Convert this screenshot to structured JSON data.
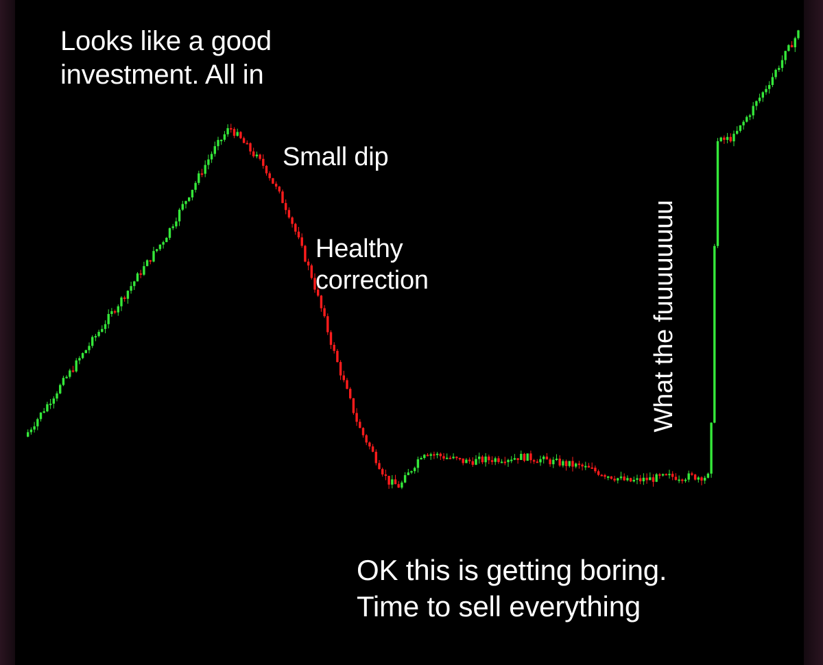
{
  "colors": {
    "background": "#000000",
    "up_candle": "#35e83a",
    "down_candle": "#ff1c1c",
    "text": "#ffffff"
  },
  "chart_data": {
    "type": "candlestick",
    "title": "",
    "xlabel": "",
    "ylabel": "",
    "axes_visible": false,
    "grid": false,
    "legend": "none",
    "ylim": [
      0,
      100
    ],
    "price_path": [
      {
        "t": 0,
        "price": 18
      },
      {
        "t": 12,
        "price": 38
      },
      {
        "t": 24,
        "price": 58
      },
      {
        "t": 32,
        "price": 75
      },
      {
        "t": 35,
        "price": 80
      },
      {
        "t": 41,
        "price": 72
      },
      {
        "t": 45,
        "price": 63
      },
      {
        "t": 49,
        "price": 50
      },
      {
        "t": 53,
        "price": 34
      },
      {
        "t": 57,
        "price": 20
      },
      {
        "t": 62,
        "price": 9
      },
      {
        "t": 64,
        "price": 8
      },
      {
        "t": 68,
        "price": 15
      },
      {
        "t": 75,
        "price": 13
      },
      {
        "t": 85,
        "price": 14
      },
      {
        "t": 95,
        "price": 12
      },
      {
        "t": 103,
        "price": 9
      },
      {
        "t": 110,
        "price": 10
      },
      {
        "t": 117,
        "price": 10
      },
      {
        "t": 118,
        "price": 77
      },
      {
        "t": 121,
        "price": 78
      },
      {
        "t": 126,
        "price": 87
      },
      {
        "t": 132,
        "price": 99
      }
    ]
  },
  "annotations": {
    "good_investment": "Looks like a good\ninvestment. All in",
    "small_dip": "Small dip",
    "healthy_correction": "Healthy\ncorrection",
    "getting_boring": "OK this is getting boring.\nTime to sell everything",
    "what_the": "What the fuuuuuuuu"
  }
}
